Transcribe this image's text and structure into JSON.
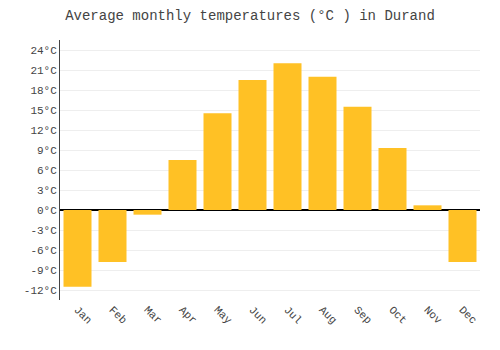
{
  "chart_data": {
    "type": "bar",
    "title": "Average monthly temperatures (°C ) in Durand",
    "categories": [
      "Jan",
      "Feb",
      "Mar",
      "Apr",
      "May",
      "Jun",
      "Jul",
      "Aug",
      "Sep",
      "Oct",
      "Nov",
      "Dec"
    ],
    "values": [
      -11.5,
      -7.8,
      -0.7,
      7.5,
      14.5,
      19.5,
      22.0,
      20.0,
      15.5,
      9.3,
      0.7,
      -7.8
    ],
    "color": "#FFC125",
    "ylim": [
      -13.5,
      25.5
    ],
    "yticks": [
      {
        "value": -12,
        "label": "-12°C"
      },
      {
        "value": -9,
        "label": "-9°C"
      },
      {
        "value": -6,
        "label": "-6°C"
      },
      {
        "value": -3,
        "label": "-3°C"
      },
      {
        "value": 0,
        "label": "0°C"
      },
      {
        "value": 3,
        "label": "3°C"
      },
      {
        "value": 6,
        "label": "6°C"
      },
      {
        "value": 9,
        "label": "9°C"
      },
      {
        "value": 12,
        "label": "12°C"
      },
      {
        "value": 15,
        "label": "15°C"
      },
      {
        "value": 18,
        "label": "18°C"
      },
      {
        "value": 21,
        "label": "21°C"
      },
      {
        "value": 24,
        "label": "24°C"
      }
    ],
    "grid": true
  }
}
